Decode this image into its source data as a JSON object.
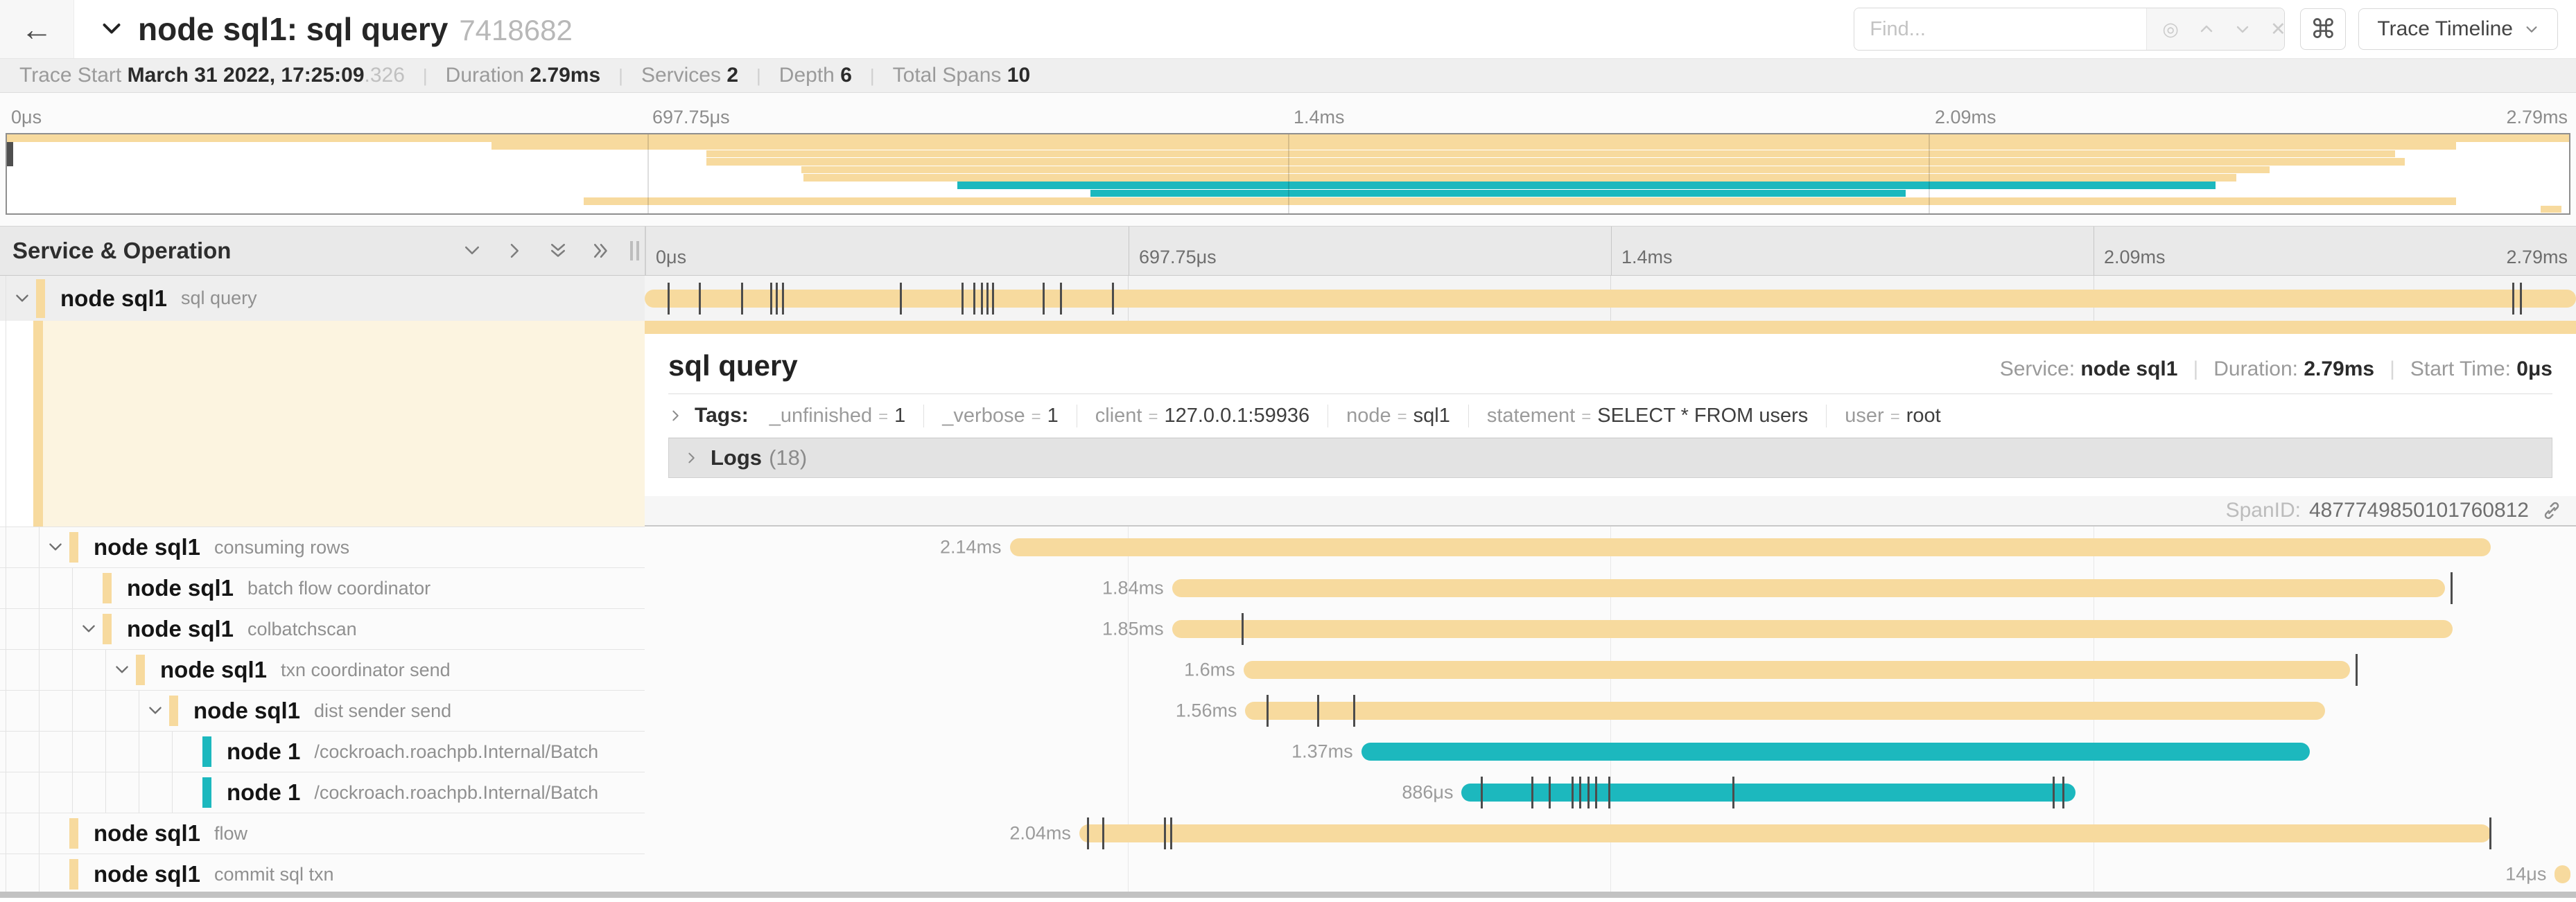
{
  "topbar": {
    "back_label": "←",
    "title": "node sql1: sql query",
    "trace_id": "7418682",
    "find_placeholder": "Find...",
    "view_button_label": "Trace Timeline",
    "kbd_button_glyph": "⌘"
  },
  "summary": {
    "trace_start_label": "Trace Start",
    "trace_start_value": "March 31 2022, 17:25:09",
    "trace_start_fraction": ".326",
    "duration_label": "Duration",
    "duration_value": "2.79ms",
    "services_label": "Services",
    "services_value": "2",
    "depth_label": "Depth",
    "depth_value": "6",
    "total_spans_label": "Total Spans",
    "total_spans_value": "10"
  },
  "timeline": {
    "header_title": "Service & Operation",
    "ticks": [
      "0μs",
      "697.75μs",
      "1.4ms",
      "2.09ms",
      "2.79ms"
    ]
  },
  "colors": {
    "tan": "#F7DA9E",
    "teal": "#1CB8BE",
    "cream": "#FCF4E0"
  },
  "detail": {
    "title": "sql query",
    "service_label": "Service:",
    "service_value": "node sql1",
    "duration_label": "Duration:",
    "duration_value": "2.79ms",
    "start_time_label": "Start Time:",
    "start_time_value": "0μs",
    "tags_label": "Tags:",
    "tags": [
      {
        "key": "_unfinished",
        "value": "1"
      },
      {
        "key": "_verbose",
        "value": "1"
      },
      {
        "key": "client",
        "value": "127.0.0.1:59936"
      },
      {
        "key": "node",
        "value": "sql1"
      },
      {
        "key": "statement",
        "value": "SELECT * FROM users"
      },
      {
        "key": "user",
        "value": "root"
      }
    ],
    "logs_label": "Logs",
    "logs_count": "(18)",
    "spanid_label": "SpanID:",
    "spanid_value": "4877749850101760812"
  },
  "spans": [
    {
      "service": "node sql1",
      "operation": "sql query",
      "depth": 0,
      "has_children": true,
      "color": "tan",
      "duration_label": "",
      "start_pct": 0,
      "width_pct": 100,
      "selected": true,
      "ticks_pct": [
        1.2,
        2.8,
        5.0,
        6.5,
        6.8,
        7.1,
        13.2,
        16.4,
        17.0,
        17.4,
        17.7,
        18.0,
        20.6,
        21.5,
        24.2,
        96.7,
        97.1
      ]
    },
    {
      "service": "node sql1",
      "operation": "consuming rows",
      "depth": 1,
      "has_children": true,
      "color": "tan",
      "duration_label": "2.14ms",
      "start_pct": 18.9,
      "width_pct": 76.7,
      "selected": false,
      "ticks_pct": []
    },
    {
      "service": "node sql1",
      "operation": "batch flow coordinator",
      "depth": 2,
      "has_children": false,
      "color": "tan",
      "duration_label": "1.84ms",
      "start_pct": 27.3,
      "width_pct": 65.9,
      "selected": false,
      "ticks_pct": [
        93.5
      ]
    },
    {
      "service": "node sql1",
      "operation": "colbatchscan",
      "depth": 2,
      "has_children": true,
      "color": "tan",
      "duration_label": "1.85ms",
      "start_pct": 27.3,
      "width_pct": 66.3,
      "selected": false,
      "ticks_pct": [
        30.9
      ]
    },
    {
      "service": "node sql1",
      "operation": "txn coordinator send",
      "depth": 3,
      "has_children": true,
      "color": "tan",
      "duration_label": "1.6ms",
      "start_pct": 31.0,
      "width_pct": 57.3,
      "selected": false,
      "ticks_pct": [
        88.6
      ]
    },
    {
      "service": "node sql1",
      "operation": "dist sender send",
      "depth": 4,
      "has_children": true,
      "color": "tan",
      "duration_label": "1.56ms",
      "start_pct": 31.1,
      "width_pct": 55.9,
      "selected": false,
      "ticks_pct": [
        32.2,
        34.8,
        36.7
      ]
    },
    {
      "service": "node 1",
      "operation": "/cockroach.roachpb.Internal/Batch",
      "depth": 5,
      "has_children": false,
      "color": "teal",
      "duration_label": "1.37ms",
      "start_pct": 37.1,
      "width_pct": 49.1,
      "selected": false,
      "ticks_pct": []
    },
    {
      "service": "node 1",
      "operation": "/cockroach.roachpb.Internal/Batch",
      "depth": 5,
      "has_children": false,
      "color": "teal",
      "duration_label": "886μs",
      "start_pct": 42.3,
      "width_pct": 31.8,
      "selected": false,
      "ticks_pct": [
        43.3,
        45.9,
        46.8,
        48.0,
        48.4,
        48.8,
        49.2,
        49.9,
        56.3,
        72.9,
        73.4
      ]
    },
    {
      "service": "node sql1",
      "operation": "flow",
      "depth": 1,
      "has_children": false,
      "color": "tan",
      "duration_label": "2.04ms",
      "start_pct": 22.5,
      "width_pct": 73.1,
      "selected": false,
      "ticks_pct": [
        22.9,
        23.7,
        26.9,
        27.2,
        95.5
      ]
    },
    {
      "service": "node sql1",
      "operation": "commit sql txn",
      "depth": 1,
      "has_children": false,
      "color": "tan",
      "duration_label": "14μs",
      "start_pct": 98.9,
      "width_pct": 0.8,
      "selected": false,
      "ticks_pct": []
    }
  ]
}
